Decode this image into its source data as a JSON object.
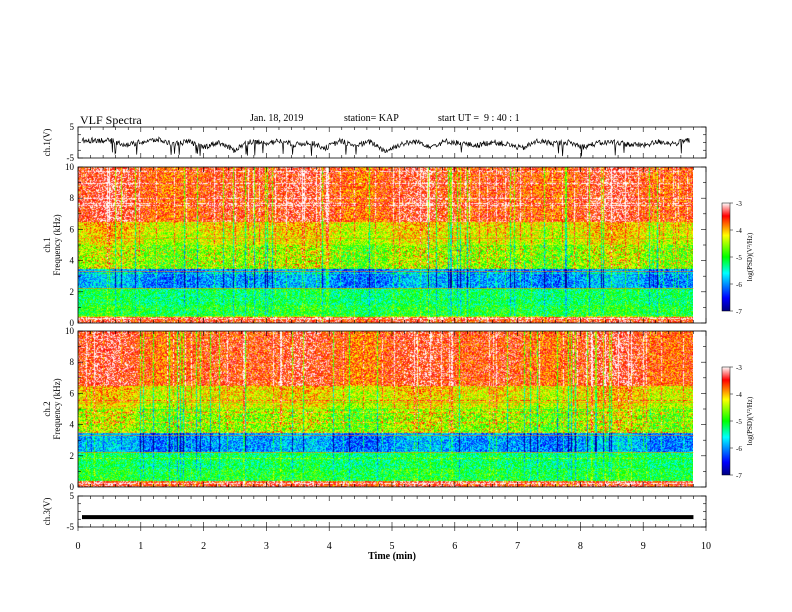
{
  "header": {
    "title": "VLF Spectra",
    "date": "Jan. 18, 2019",
    "station": "station= KAP",
    "start": "start UT =  9 : 40 : 1"
  },
  "chart_data": [
    {
      "type": "line",
      "panel": "ch1-waveform",
      "ylabel": "ch.1(V)",
      "ylim": [
        -5,
        5
      ],
      "yticks": [
        "5",
        "-5"
      ],
      "x_range_min": [
        0,
        9.8
      ],
      "description_only_visual": false,
      "series": [
        {
          "values": [
            0.6,
            0.8,
            0.5,
            -0.8,
            0.2,
            0.9,
            -0.5,
            0.3,
            -1.5,
            0.1,
            -2.5,
            0.4,
            -0.2,
            0.5,
            -0.8,
            0.1,
            -1.8,
            0.5,
            -1.0,
            0.2,
            -2.8,
            -0.5,
            0.3,
            -1.2,
            0.4,
            -0.3,
            -1.0,
            0.2,
            -0.6,
            -1.9,
            0.5,
            -0.3,
            0.1,
            -1.4,
            -0.2,
            0.2,
            -0.6,
            -0.9,
            0.3,
            -0.4,
            0.8
          ]
        }
      ]
    },
    {
      "type": "heatmap",
      "panel": "ch1-spectrogram",
      "ylabel": "ch.1 Frequency (kHz)",
      "ylim": [
        0,
        10
      ],
      "yticks": [
        "0",
        "2",
        "4",
        "6",
        "8",
        "10"
      ],
      "colorbar": {
        "label": "log(PSD)(V²/Hz)",
        "range": [
          -7,
          -3
        ],
        "ticks": [
          "-3",
          "-4",
          "-5",
          "-6",
          "-7"
        ]
      }
    },
    {
      "type": "heatmap",
      "panel": "ch2-spectrogram",
      "ylabel": "ch.2 Frequency (kHz)",
      "ylim": [
        0,
        10
      ],
      "yticks": [
        "0",
        "2",
        "4",
        "6",
        "8",
        "10"
      ],
      "colorbar": {
        "label": "log(PSD)(V²/Hz)",
        "range": [
          -7,
          -3
        ],
        "ticks": [
          "-3",
          "-4",
          "-5",
          "-6",
          "-7"
        ]
      }
    },
    {
      "type": "line",
      "panel": "ch3-waveform",
      "ylabel": "ch.3(V)",
      "ylim": [
        -5,
        5
      ],
      "yticks": [
        "5",
        "-5"
      ],
      "series": [
        {
          "values": [
            -1.8,
            -1.8
          ]
        }
      ]
    }
  ],
  "xaxis": {
    "label": "Time (min)",
    "ticks": [
      "0",
      "1",
      "2",
      "3",
      "4",
      "5",
      "6",
      "7",
      "8",
      "9",
      "10"
    ],
    "range": [
      0,
      10
    ],
    "data_end": 9.8
  },
  "colors": {
    "wave": "#000000",
    "red": "#ff0000",
    "yellow": "#ffff00",
    "green": "#00ff00",
    "cyan": "#00ffff",
    "blue": "#0000ff",
    "dark": "#000080"
  }
}
